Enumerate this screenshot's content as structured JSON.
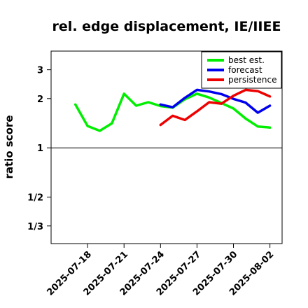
{
  "chart_data": {
    "type": "line",
    "title": "rel. edge displacement, IE/IIEE",
    "ylabel": "ratio score",
    "xlabel": "",
    "y_scale": "log",
    "ylim": [
      0.26,
      3.9
    ],
    "xlim": [
      "2025-07-15",
      "2025-08-03"
    ],
    "reference_line": 1,
    "yticks": [
      {
        "value": 3,
        "label": "3"
      },
      {
        "value": 2,
        "label": "2"
      },
      {
        "value": 1,
        "label": "1"
      },
      {
        "value": 0.5,
        "label": "1/2"
      },
      {
        "value": 0.3333,
        "label": "1/3"
      }
    ],
    "xticks": [
      {
        "date": "2025-07-18",
        "label": "2025-07-18",
        "color": "#000000"
      },
      {
        "date": "2025-07-21",
        "label": "2025-07-21",
        "color": "#000000"
      },
      {
        "date": "2025-07-24",
        "label": "2025-07-24",
        "color": "#1a8a1a"
      },
      {
        "date": "2025-07-27",
        "label": "2025-07-27",
        "color": "#000000"
      },
      {
        "date": "2025-07-30",
        "label": "2025-07-30",
        "color": "#000000"
      },
      {
        "date": "2025-08-02",
        "label": "2025-08-02",
        "color": "#000000"
      }
    ],
    "legend": "top-right",
    "series": [
      {
        "name": "best est.",
        "color": "#00ee00",
        "points": [
          [
            "2025-07-17",
            1.84
          ],
          [
            "2025-07-18",
            1.36
          ],
          [
            "2025-07-19",
            1.27
          ],
          [
            "2025-07-20",
            1.41
          ],
          [
            "2025-07-21",
            2.14
          ],
          [
            "2025-07-22",
            1.81
          ],
          [
            "2025-07-23",
            1.9
          ],
          [
            "2025-07-24",
            1.8
          ],
          [
            "2025-07-25",
            1.76
          ],
          [
            "2025-07-26",
            1.98
          ],
          [
            "2025-07-27",
            2.14
          ],
          [
            "2025-07-28",
            2.03
          ],
          [
            "2025-07-29",
            1.88
          ],
          [
            "2025-07-30",
            1.74
          ],
          [
            "2025-07-31",
            1.51
          ],
          [
            "2025-08-01",
            1.35
          ],
          [
            "2025-08-02",
            1.33
          ]
        ]
      },
      {
        "name": "forecast",
        "color": "#0000ee",
        "points": [
          [
            "2025-07-24",
            1.84
          ],
          [
            "2025-07-25",
            1.77
          ],
          [
            "2025-07-26",
            2.02
          ],
          [
            "2025-07-27",
            2.26
          ],
          [
            "2025-07-28",
            2.21
          ],
          [
            "2025-07-29",
            2.13
          ],
          [
            "2025-07-30",
            1.99
          ],
          [
            "2025-07-31",
            1.89
          ],
          [
            "2025-08-01",
            1.64
          ],
          [
            "2025-08-02",
            1.81
          ]
        ]
      },
      {
        "name": "persistence",
        "color": "#ee0000",
        "points": [
          [
            "2025-07-24",
            1.38
          ],
          [
            "2025-07-25",
            1.57
          ],
          [
            "2025-07-26",
            1.48
          ],
          [
            "2025-07-27",
            1.67
          ],
          [
            "2025-07-28",
            1.9
          ],
          [
            "2025-07-29",
            1.86
          ],
          [
            "2025-07-30",
            2.08
          ],
          [
            "2025-07-31",
            2.26
          ],
          [
            "2025-08-01",
            2.22
          ],
          [
            "2025-08-02",
            2.06
          ]
        ]
      }
    ]
  }
}
